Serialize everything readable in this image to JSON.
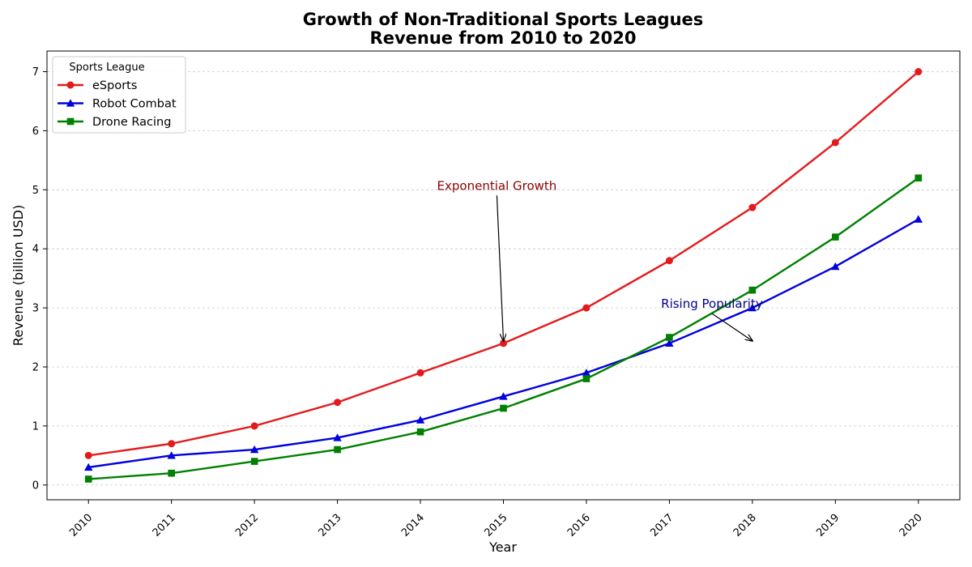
{
  "chart_data": {
    "type": "line",
    "title_line1": "Growth of Non-Traditional Sports Leagues",
    "title_line2": "Revenue from 2010 to 2020",
    "xlabel": "Year",
    "ylabel": "Revenue (billion USD)",
    "x": [
      2010,
      2011,
      2012,
      2013,
      2014,
      2015,
      2016,
      2017,
      2018,
      2019,
      2020
    ],
    "ylim": [
      -0.25,
      7.35
    ],
    "yticks": [
      0,
      1,
      2,
      3,
      4,
      5,
      6,
      7
    ],
    "grid": "horizontal dashed",
    "legend": {
      "title": "Sports League",
      "placement": "top-left"
    },
    "series": [
      {
        "name": "eSports",
        "color": "#e31a1c",
        "marker": "circle",
        "values": [
          0.5,
          0.7,
          1.0,
          1.4,
          1.9,
          2.4,
          3.0,
          3.8,
          4.7,
          5.8,
          7.0
        ]
      },
      {
        "name": "Robot Combat",
        "color": "#0000dd",
        "marker": "triangle",
        "values": [
          0.3,
          0.5,
          0.6,
          0.8,
          1.1,
          1.5,
          1.9,
          2.4,
          3.0,
          3.7,
          4.5
        ]
      },
      {
        "name": "Drone Racing",
        "color": "#008000",
        "marker": "square",
        "values": [
          0.1,
          0.2,
          0.4,
          0.6,
          0.9,
          1.3,
          1.8,
          2.5,
          3.3,
          4.2,
          5.2
        ]
      }
    ],
    "annotations": [
      {
        "text": "Exponential Growth",
        "color": "#8b0000",
        "text_at": [
          2014.2,
          5.0
        ],
        "arrow_to": [
          2015,
          2.4
        ]
      },
      {
        "text": "Rising Popularity",
        "color": "#00008b",
        "text_at": [
          2016.9,
          3.0
        ],
        "arrow_to": [
          2018,
          2.4
        ]
      }
    ]
  }
}
